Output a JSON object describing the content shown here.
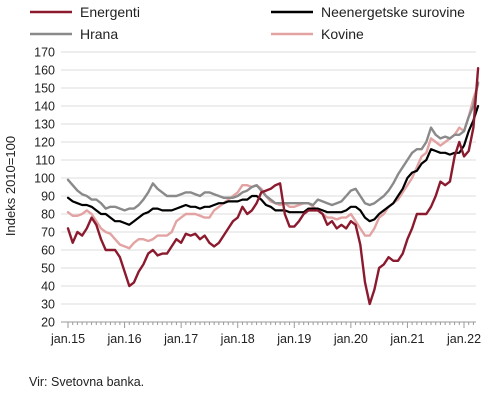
{
  "chart_data": {
    "type": "line",
    "ylabel": "Indeks 2010=100",
    "ylim": [
      20,
      170
    ],
    "yticks": [
      20,
      30,
      40,
      50,
      60,
      70,
      80,
      90,
      100,
      110,
      120,
      130,
      140,
      150,
      160,
      170
    ],
    "xlim": [
      2015.0,
      2022.33
    ],
    "xticks": [
      {
        "x": 2015,
        "label": "jan.15"
      },
      {
        "x": 2016,
        "label": "jan.16"
      },
      {
        "x": 2017,
        "label": "jan.17"
      },
      {
        "x": 2018,
        "label": "jan.18"
      },
      {
        "x": 2019,
        "label": "jan.19"
      },
      {
        "x": 2020,
        "label": "jan.20"
      },
      {
        "x": 2021,
        "label": "jan.21"
      },
      {
        "x": 2022,
        "label": "jan.22"
      }
    ],
    "grid": "horizontal",
    "legend_position": "top",
    "source": "Vir: Svetovna banka.",
    "series": [
      {
        "name": "Energenti",
        "color": "#8b1a2e",
        "x": [
          2015.0,
          2015.083,
          2015.167,
          2015.25,
          2015.333,
          2015.417,
          2015.5,
          2015.583,
          2015.667,
          2015.75,
          2015.833,
          2015.917,
          2016.0,
          2016.083,
          2016.167,
          2016.25,
          2016.333,
          2016.417,
          2016.5,
          2016.583,
          2016.667,
          2016.75,
          2016.833,
          2016.917,
          2017.0,
          2017.083,
          2017.167,
          2017.25,
          2017.333,
          2017.417,
          2017.5,
          2017.583,
          2017.667,
          2017.75,
          2017.833,
          2017.917,
          2018.0,
          2018.083,
          2018.167,
          2018.25,
          2018.333,
          2018.417,
          2018.5,
          2018.583,
          2018.667,
          2018.75,
          2018.833,
          2018.917,
          2019.0,
          2019.083,
          2019.167,
          2019.25,
          2019.333,
          2019.417,
          2019.5,
          2019.583,
          2019.667,
          2019.75,
          2019.833,
          2019.917,
          2020.0,
          2020.083,
          2020.167,
          2020.25,
          2020.333,
          2020.417,
          2020.5,
          2020.583,
          2020.667,
          2020.75,
          2020.833,
          2020.917,
          2021.0,
          2021.083,
          2021.167,
          2021.25,
          2021.333,
          2021.417,
          2021.5,
          2021.583,
          2021.667,
          2021.75,
          2021.833,
          2021.917,
          2022.0,
          2022.083,
          2022.167,
          2022.25
        ],
        "values": [
          72,
          64,
          70,
          68,
          72,
          78,
          74,
          66,
          60,
          60,
          60,
          56,
          48,
          40,
          42,
          48,
          52,
          58,
          60,
          57,
          58,
          58,
          62,
          66,
          64,
          69,
          68,
          69,
          66,
          68,
          64,
          62,
          64,
          68,
          72,
          76,
          78,
          84,
          80,
          82,
          86,
          92,
          93,
          94,
          96,
          97,
          80,
          73,
          73,
          76,
          80,
          82,
          82,
          82,
          80,
          74,
          76,
          72,
          74,
          72,
          76,
          74,
          63,
          42,
          30,
          38,
          50,
          52,
          56,
          54,
          54,
          58,
          66,
          72,
          80,
          80,
          80,
          84,
          90,
          98,
          96,
          98,
          112,
          120,
          112,
          115,
          128,
          161
        ]
      },
      {
        "name": "Neenergetske surovine",
        "color": "#000000",
        "x": [
          2015.0,
          2015.083,
          2015.167,
          2015.25,
          2015.333,
          2015.417,
          2015.5,
          2015.583,
          2015.667,
          2015.75,
          2015.833,
          2015.917,
          2016.0,
          2016.083,
          2016.167,
          2016.25,
          2016.333,
          2016.417,
          2016.5,
          2016.583,
          2016.667,
          2016.75,
          2016.833,
          2016.917,
          2017.0,
          2017.083,
          2017.167,
          2017.25,
          2017.333,
          2017.417,
          2017.5,
          2017.583,
          2017.667,
          2017.75,
          2017.833,
          2017.917,
          2018.0,
          2018.083,
          2018.167,
          2018.25,
          2018.333,
          2018.417,
          2018.5,
          2018.583,
          2018.667,
          2018.75,
          2018.833,
          2018.917,
          2019.0,
          2019.083,
          2019.167,
          2019.25,
          2019.333,
          2019.417,
          2019.5,
          2019.583,
          2019.667,
          2019.75,
          2019.833,
          2019.917,
          2020.0,
          2020.083,
          2020.167,
          2020.25,
          2020.333,
          2020.417,
          2020.5,
          2020.583,
          2020.667,
          2020.75,
          2020.833,
          2020.917,
          2021.0,
          2021.083,
          2021.167,
          2021.25,
          2021.333,
          2021.417,
          2021.5,
          2021.583,
          2021.667,
          2021.75,
          2021.833,
          2021.917,
          2022.0,
          2022.083,
          2022.167,
          2022.25
        ],
        "values": [
          89,
          87,
          86,
          85,
          85,
          84,
          82,
          80,
          80,
          78,
          76,
          76,
          75,
          74,
          76,
          78,
          80,
          81,
          83,
          83,
          82,
          82,
          82,
          83,
          84,
          85,
          84,
          84,
          83,
          84,
          84,
          85,
          86,
          86,
          87,
          87,
          87,
          88,
          88,
          90,
          90,
          88,
          85,
          84,
          82,
          82,
          82,
          81,
          81,
          81,
          81,
          83,
          83,
          83,
          82,
          81,
          81,
          81,
          81,
          82,
          84,
          84,
          82,
          78,
          76,
          77,
          80,
          82,
          84,
          86,
          90,
          94,
          100,
          103,
          104,
          108,
          110,
          116,
          115,
          114,
          114,
          113,
          114,
          114,
          118,
          126,
          132,
          140
        ]
      },
      {
        "name": "Hrana",
        "color": "#8a8a8a",
        "x": [
          2015.0,
          2015.083,
          2015.167,
          2015.25,
          2015.333,
          2015.417,
          2015.5,
          2015.583,
          2015.667,
          2015.75,
          2015.833,
          2015.917,
          2016.0,
          2016.083,
          2016.167,
          2016.25,
          2016.333,
          2016.417,
          2016.5,
          2016.583,
          2016.667,
          2016.75,
          2016.833,
          2016.917,
          2017.0,
          2017.083,
          2017.167,
          2017.25,
          2017.333,
          2017.417,
          2017.5,
          2017.583,
          2017.667,
          2017.75,
          2017.833,
          2017.917,
          2018.0,
          2018.083,
          2018.167,
          2018.25,
          2018.333,
          2018.417,
          2018.5,
          2018.583,
          2018.667,
          2018.75,
          2018.833,
          2018.917,
          2019.0,
          2019.083,
          2019.167,
          2019.25,
          2019.333,
          2019.417,
          2019.5,
          2019.583,
          2019.667,
          2019.75,
          2019.833,
          2019.917,
          2020.0,
          2020.083,
          2020.167,
          2020.25,
          2020.333,
          2020.417,
          2020.5,
          2020.583,
          2020.667,
          2020.75,
          2020.833,
          2020.917,
          2021.0,
          2021.083,
          2021.167,
          2021.25,
          2021.333,
          2021.417,
          2021.5,
          2021.583,
          2021.667,
          2021.75,
          2021.833,
          2021.917,
          2022.0,
          2022.083,
          2022.167,
          2022.25
        ],
        "values": [
          99,
          96,
          93,
          91,
          90,
          88,
          88,
          86,
          83,
          84,
          84,
          83,
          82,
          83,
          83,
          85,
          88,
          92,
          97,
          94,
          92,
          90,
          90,
          90,
          91,
          92,
          92,
          91,
          90,
          92,
          92,
          91,
          90,
          89,
          89,
          89,
          90,
          92,
          93,
          95,
          96,
          93,
          90,
          88,
          86,
          86,
          86,
          86,
          86,
          86,
          86,
          86,
          85,
          88,
          87,
          86,
          85,
          86,
          87,
          90,
          93,
          94,
          90,
          86,
          85,
          86,
          88,
          90,
          93,
          97,
          102,
          106,
          110,
          114,
          116,
          116,
          120,
          128,
          124,
          122,
          123,
          122,
          124,
          124,
          126,
          134,
          140,
          153
        ]
      },
      {
        "name": "Kovine",
        "color": "#e3a3a3",
        "x": [
          2015.0,
          2015.083,
          2015.167,
          2015.25,
          2015.333,
          2015.417,
          2015.5,
          2015.583,
          2015.667,
          2015.75,
          2015.833,
          2015.917,
          2016.0,
          2016.083,
          2016.167,
          2016.25,
          2016.333,
          2016.417,
          2016.5,
          2016.583,
          2016.667,
          2016.75,
          2016.833,
          2016.917,
          2017.0,
          2017.083,
          2017.167,
          2017.25,
          2017.333,
          2017.417,
          2017.5,
          2017.583,
          2017.667,
          2017.75,
          2017.833,
          2017.917,
          2018.0,
          2018.083,
          2018.167,
          2018.25,
          2018.333,
          2018.417,
          2018.5,
          2018.583,
          2018.667,
          2018.75,
          2018.833,
          2018.917,
          2019.0,
          2019.083,
          2019.167,
          2019.25,
          2019.333,
          2019.417,
          2019.5,
          2019.583,
          2019.667,
          2019.75,
          2019.833,
          2019.917,
          2020.0,
          2020.083,
          2020.167,
          2020.25,
          2020.333,
          2020.417,
          2020.5,
          2020.583,
          2020.667,
          2020.75,
          2020.833,
          2020.917,
          2021.0,
          2021.083,
          2021.167,
          2021.25,
          2021.333,
          2021.417,
          2021.5,
          2021.583,
          2021.667,
          2021.75,
          2021.833,
          2021.917,
          2022.0,
          2022.083,
          2022.167,
          2022.25
        ],
        "values": [
          81,
          79,
          79,
          80,
          82,
          80,
          76,
          72,
          70,
          69,
          66,
          63,
          62,
          61,
          64,
          66,
          66,
          65,
          66,
          68,
          68,
          68,
          70,
          76,
          78,
          80,
          80,
          80,
          79,
          78,
          78,
          82,
          84,
          86,
          88,
          90,
          92,
          96,
          96,
          95,
          96,
          94,
          90,
          87,
          86,
          85,
          86,
          84,
          84,
          85,
          86,
          86,
          84,
          82,
          80,
          78,
          78,
          77,
          78,
          78,
          80,
          76,
          72,
          68,
          68,
          72,
          78,
          80,
          84,
          86,
          88,
          92,
          96,
          100,
          106,
          112,
          114,
          122,
          120,
          118,
          120,
          122,
          124,
          128,
          126,
          134,
          144,
          152
        ]
      }
    ]
  }
}
